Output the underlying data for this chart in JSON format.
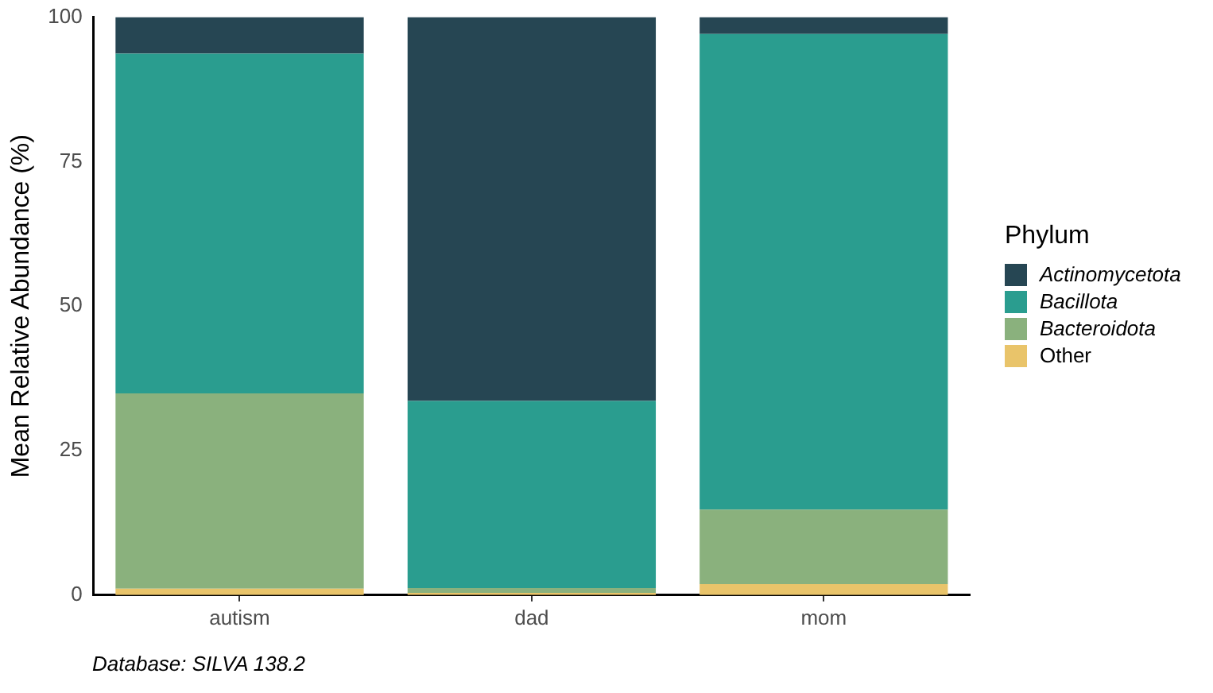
{
  "chart_data": {
    "type": "bar",
    "stacked": true,
    "categories": [
      "autism",
      "dad",
      "mom"
    ],
    "ylabel": "Mean Relative Abundance (%)",
    "ylim": [
      0,
      100
    ],
    "yticks": [
      0,
      25,
      50,
      75,
      100
    ],
    "grid": false,
    "legend": "right",
    "legend_title": "Phylum",
    "annotations": [
      "Database: SILVA 138.2"
    ],
    "series": [
      {
        "name": "Other",
        "color": "#e9c46a",
        "values": [
          1.1,
          0.4,
          1.9
        ]
      },
      {
        "name": "Bacteroidota",
        "color": "#8ab17d",
        "values": [
          33.8,
          0.8,
          12.9
        ]
      },
      {
        "name": "Bacillota",
        "color": "#2a9d8f",
        "values": [
          58.8,
          32.4,
          82.3
        ]
      },
      {
        "name": "Actinomycetota",
        "color": "#264653",
        "values": [
          6.3,
          66.4,
          2.9
        ]
      }
    ]
  }
}
